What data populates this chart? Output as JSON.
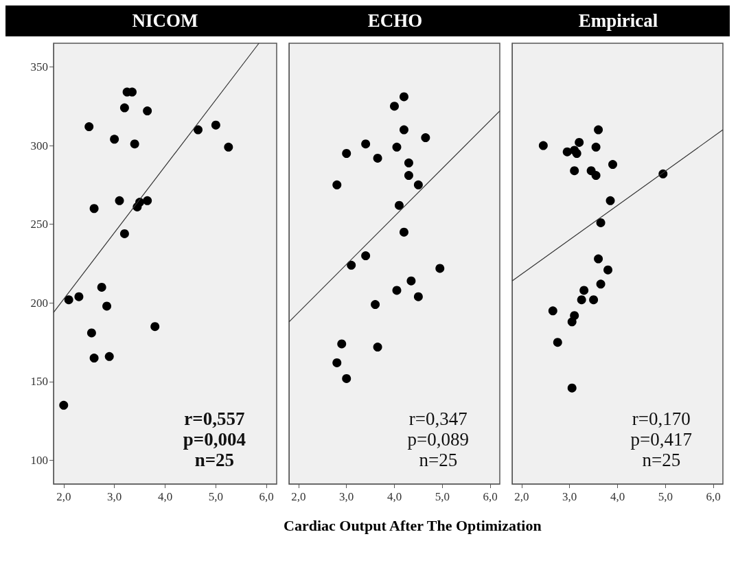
{
  "chart_data": [
    {
      "type": "scatter",
      "title": "NICOM",
      "grid": false,
      "xlim": [
        1.8,
        6.2
      ],
      "ylim": [
        85,
        365
      ],
      "xticks": [
        {
          "value": 2,
          "label": "2,0"
        },
        {
          "value": 3,
          "label": "3,0"
        },
        {
          "value": 4,
          "label": "4,0"
        },
        {
          "value": 5,
          "label": "5,0"
        },
        {
          "value": 6,
          "label": "6,0"
        }
      ],
      "yticks": [
        100,
        150,
        200,
        250,
        300,
        350
      ],
      "annotations": [
        "r=0,557",
        "p=0,004",
        "n=25"
      ],
      "series": [
        {
          "color": "#000000",
          "marker": "circle",
          "x": [
            2.0,
            2.1,
            2.3,
            2.5,
            2.55,
            2.6,
            2.6,
            2.75,
            2.85,
            2.9,
            3.0,
            3.1,
            3.2,
            3.2,
            3.25,
            3.35,
            3.4,
            3.45,
            3.5,
            3.65,
            3.65,
            3.8,
            4.65,
            5.0,
            5.25
          ],
          "values": [
            135,
            202,
            204,
            312,
            181,
            165,
            260,
            210,
            198,
            166,
            304,
            265,
            244,
            324,
            334,
            334,
            301,
            261,
            264,
            265,
            322,
            185,
            310,
            313,
            299
          ]
        },
        {
          "type": "line",
          "marker": "none",
          "color": "#333333",
          "x": [
            1.8,
            5.85
          ],
          "values": [
            194,
            365
          ]
        }
      ]
    },
    {
      "type": "scatter",
      "title": "ECHO",
      "xlabel": "Cardiac Output After The Optimization",
      "grid": false,
      "tick_labels": "x",
      "xlim": [
        1.8,
        6.2
      ],
      "ylim": [
        85,
        365
      ],
      "xticks": [
        {
          "value": 2,
          "label": "2,0"
        },
        {
          "value": 3,
          "label": "3,0"
        },
        {
          "value": 4,
          "label": "4,0"
        },
        {
          "value": 5,
          "label": "5,0"
        },
        {
          "value": 6,
          "label": "6,0"
        }
      ],
      "yticks": [
        100,
        150,
        200,
        250,
        300,
        350
      ],
      "annotations": [
        "r=0,347",
        "p=0,089",
        "n=25"
      ],
      "series": [
        {
          "color": "#000000",
          "marker": "circle",
          "x": [
            2.8,
            2.8,
            2.9,
            3.0,
            3.0,
            3.1,
            3.4,
            3.4,
            3.6,
            3.65,
            3.65,
            4.0,
            4.05,
            4.05,
            4.1,
            4.2,
            4.2,
            4.2,
            4.3,
            4.3,
            4.35,
            4.5,
            4.5,
            4.65,
            4.95
          ],
          "values": [
            162,
            275,
            174,
            152,
            295,
            224,
            230,
            301,
            199,
            172,
            292,
            325,
            208,
            299,
            262,
            245,
            310,
            331,
            289,
            281,
            214,
            204,
            275,
            305,
            222
          ]
        },
        {
          "type": "line",
          "marker": "none",
          "color": "#333333",
          "x": [
            1.8,
            6.2
          ],
          "values": [
            188,
            322
          ]
        }
      ]
    },
    {
      "type": "scatter",
      "title": "Empirical",
      "grid": false,
      "tick_labels": "x",
      "xlim": [
        1.8,
        6.2
      ],
      "ylim": [
        85,
        365
      ],
      "xticks": [
        {
          "value": 2,
          "label": "2,0"
        },
        {
          "value": 3,
          "label": "3,0"
        },
        {
          "value": 4,
          "label": "4,0"
        },
        {
          "value": 5,
          "label": "5,0"
        },
        {
          "value": 6,
          "label": "6,0"
        }
      ],
      "yticks": [
        100,
        150,
        200,
        250,
        300,
        350
      ],
      "annotations": [
        "r=0,170",
        "p=0,417",
        "n=25"
      ],
      "series": [
        {
          "color": "#000000",
          "marker": "circle",
          "x": [
            2.45,
            2.65,
            2.75,
            2.95,
            3.05,
            3.05,
            3.1,
            3.1,
            3.1,
            3.15,
            3.2,
            3.25,
            3.3,
            3.45,
            3.5,
            3.55,
            3.55,
            3.6,
            3.6,
            3.65,
            3.65,
            3.8,
            3.85,
            3.9,
            4.95
          ],
          "values": [
            300,
            195,
            175,
            296,
            146,
            188,
            192,
            284,
            297,
            295,
            302,
            202,
            208,
            284,
            202,
            299,
            281,
            310,
            228,
            251,
            212,
            221,
            265,
            288,
            282
          ]
        },
        {
          "type": "line",
          "marker": "none",
          "color": "#333333",
          "x": [
            1.8,
            6.2
          ],
          "values": [
            214,
            310
          ]
        }
      ]
    }
  ]
}
